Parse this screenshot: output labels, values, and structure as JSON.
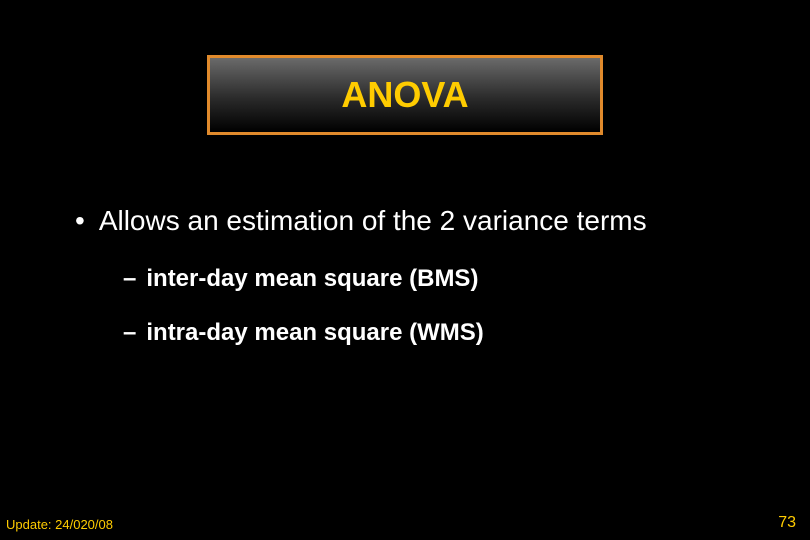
{
  "title": {
    "text": "ANOVA",
    "font_size": 36,
    "font_weight": "bold",
    "text_color": "#ffcc00",
    "border_color": "#e08a2c",
    "gradient_top": "#6a6a6a",
    "gradient_mid": "#2a2a2a",
    "gradient_bottom": "#000000"
  },
  "bullet": {
    "text": "Allows an estimation of the 2 variance terms",
    "color": "#ffffff",
    "font_size": 28
  },
  "subitems": [
    {
      "text": "inter-day mean square (BMS)",
      "color": "#ffffff",
      "font_size": 24
    },
    {
      "text": "intra-day mean square (WMS)",
      "color": "#ffffff",
      "font_size": 24
    }
  ],
  "footer": {
    "left_text": "Update: 24/020/08",
    "right_text": "73",
    "color": "#ffcc00"
  },
  "background_color": "#000000"
}
